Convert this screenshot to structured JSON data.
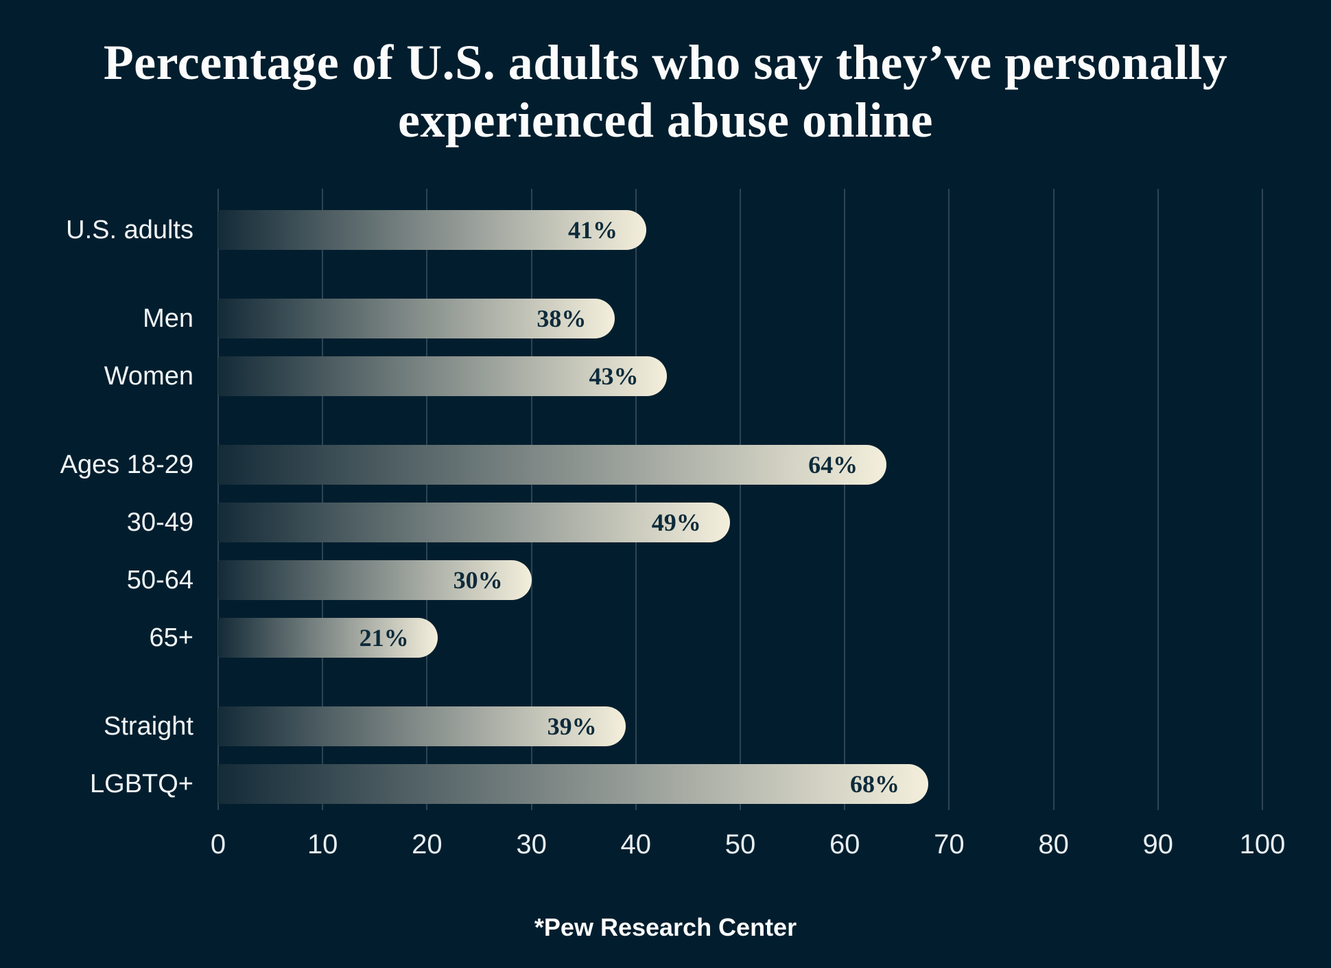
{
  "page": {
    "background": "#021E2E"
  },
  "chart_data": {
    "type": "bar",
    "orientation": "horizontal",
    "title": "Percentage of U.S. adults who say they’ve personally\nexperienced abuse online",
    "source": "*Pew Research Center",
    "categories": [
      "U.S. adults",
      "Men",
      "Women",
      "Ages 18-29",
      "30-49",
      "50-64",
      "65+",
      "Straight",
      "LGBTQ+"
    ],
    "values": [
      41,
      38,
      43,
      64,
      49,
      30,
      21,
      39,
      68
    ],
    "groups": [
      [
        "U.S. adults"
      ],
      [
        "Men",
        "Women"
      ],
      [
        "Ages 18-29",
        "30-49",
        "50-64",
        "65+"
      ],
      [
        "Straight",
        "LGBTQ+"
      ]
    ],
    "value_suffix": "%",
    "xlabel": "",
    "ylabel": "",
    "xlim": [
      0,
      100
    ],
    "x_ticks": [
      0,
      10,
      20,
      30,
      40,
      50,
      60,
      70,
      80,
      90,
      100
    ],
    "grid": true,
    "legend": false,
    "colors": {
      "background": "#021E2E",
      "title_text": "#FBFCFB",
      "label_text": "#F2F6F7",
      "tick_text": "#E8EFF3",
      "gridline": "#2E4454",
      "bar_gradient_start": "#142B38",
      "bar_gradient_end": "#F4EFDC",
      "bar_value_text": "#0E2B3B",
      "source_text": "#FDFEFE"
    }
  }
}
